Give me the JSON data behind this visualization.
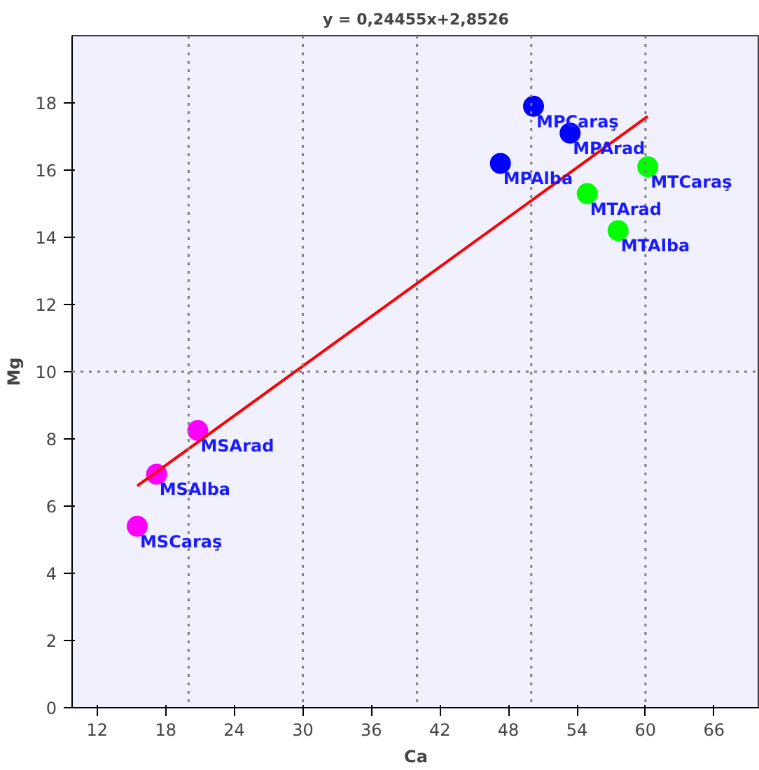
{
  "chart_data": {
    "type": "scatter",
    "title": "y = 0,24455x+2,8526",
    "xlabel": "Ca",
    "ylabel": "Mg",
    "xlim": [
      9.8,
      70
    ],
    "ylim": [
      0,
      20
    ],
    "xticks": [
      12,
      18,
      24,
      30,
      36,
      42,
      48,
      54,
      60,
      66
    ],
    "yticks": [
      0,
      2,
      4,
      6,
      8,
      10,
      12,
      14,
      16,
      18
    ],
    "grid": false,
    "marker": "circle",
    "series": [
      {
        "color": "#ff00ff",
        "x": [
          15.5,
          17.2,
          20.8
        ],
        "values": [
          5.4,
          6.95,
          8.25
        ]
      },
      {
        "color": "#0000ff",
        "x": [
          50.2,
          53.4,
          47.3
        ],
        "values": [
          17.9,
          17.1,
          16.2
        ]
      },
      {
        "color": "#00ff00",
        "x": [
          60.2,
          54.9,
          57.6
        ],
        "values": [
          16.1,
          15.3,
          14.2
        ]
      },
      {
        "type": "line",
        "marker": "none",
        "color": "#ff0000",
        "x": [
          15.5,
          60.2
        ],
        "values": [
          6.6,
          17.6
        ]
      }
    ],
    "ref_lines": [
      {
        "axis": "x",
        "value": 20,
        "color": "#808080",
        "line_style": "dotted"
      },
      {
        "axis": "x",
        "value": 30,
        "color": "#808080",
        "line_style": "dotted"
      },
      {
        "axis": "x",
        "value": 40,
        "color": "#808080",
        "line_style": "dotted"
      },
      {
        "axis": "x",
        "value": 50,
        "color": "#808080",
        "line_style": "dotted"
      },
      {
        "axis": "x",
        "value": 60,
        "color": "#808080",
        "line_style": "dotted"
      },
      {
        "axis": "y",
        "value": 10,
        "color": "#808080",
        "line_style": "dotted"
      }
    ],
    "annotations": [
      {
        "text": "MSCaraş",
        "x": 15.5,
        "y": 5.4
      },
      {
        "text": "MSAlba",
        "x": 17.2,
        "y": 6.95
      },
      {
        "text": "MSArad",
        "x": 20.8,
        "y": 8.25
      },
      {
        "text": "MPCaraş",
        "x": 50.2,
        "y": 17.9
      },
      {
        "text": "MPArad",
        "x": 53.4,
        "y": 17.1
      },
      {
        "text": "MPAlba",
        "x": 47.3,
        "y": 16.2
      },
      {
        "text": "MTCaraş",
        "x": 60.2,
        "y": 16.1
      },
      {
        "text": "MTArad",
        "x": 54.9,
        "y": 15.3
      },
      {
        "text": "MTAlba",
        "x": 57.6,
        "y": 14.2
      }
    ]
  }
}
